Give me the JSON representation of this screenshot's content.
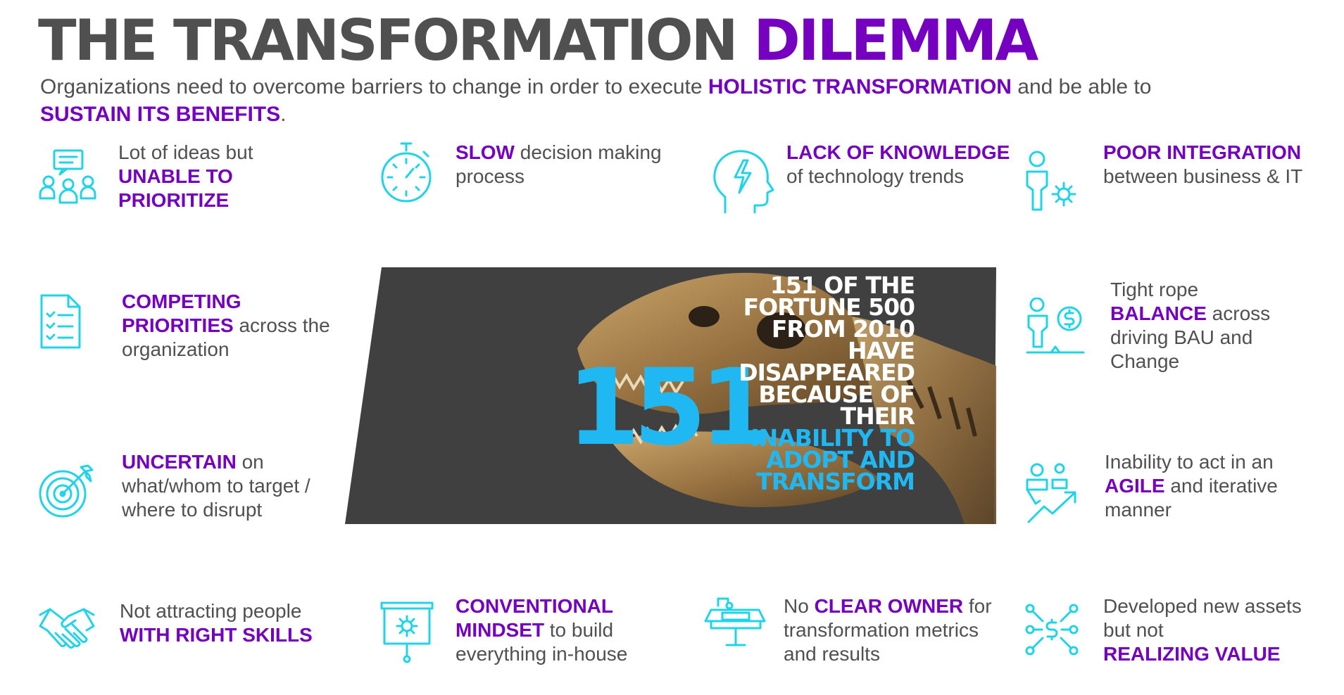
{
  "title": {
    "main": "THE TRANSFORMATION",
    "accent": "DILEMMA"
  },
  "subtitle": {
    "part1": "Organizations need to overcome barriers to change in order to execute ",
    "highlight1": "HOLISTIC TRANSFORMATION",
    "part2": " and be able to ",
    "highlight2": "SUSTAIN ITS BENEFITS",
    "part3": "."
  },
  "center": {
    "stat_lines": [
      "151 OF THE",
      "FORTUNE 500",
      "FROM 2010",
      "HAVE",
      "DISAPPEARED",
      "BECAUSE OF",
      "THEIR"
    ],
    "stat_highlight_lines": [
      "INABILITY TO",
      "ADOPT AND",
      "TRANSFORM"
    ],
    "big_number": "151"
  },
  "items": {
    "prioritize": {
      "icon": "chat-team-icon",
      "pre": "Lot of ideas but",
      "bold": "UNABLE TO PRIORITIZE",
      "post": ""
    },
    "slow": {
      "icon": "stopwatch-icon",
      "pre": "",
      "bold": "SLOW",
      "post": " decision making process"
    },
    "knowledge": {
      "icon": "brain-bolt-icon",
      "pre": "",
      "bold": "LACK OF KNOWLEDGE",
      "post": " of technology trends"
    },
    "integration": {
      "icon": "person-gear-icon",
      "pre": "",
      "bold": "POOR INTEGRATION",
      "post": "between business & IT"
    },
    "competing": {
      "icon": "checklist-icon",
      "pre": "",
      "bold": "COMPETING PRIORITIES",
      "post": " across the organization"
    },
    "balance": {
      "icon": "person-balance-icon",
      "pre": "Tight rope",
      "bold": "BALANCE",
      "post": " across driving BAU and Change"
    },
    "uncertain": {
      "icon": "target-icon",
      "pre": "",
      "bold": "UNCERTAIN",
      "post": " on what/whom to target / where to disrupt"
    },
    "agile": {
      "icon": "people-growth-icon",
      "pre": "Inability to act in an",
      "bold": "AGILE",
      "post": " and iterative manner"
    },
    "skills": {
      "icon": "handshake-icon",
      "pre": "Not attracting people",
      "bold": "WITH RIGHT SKILLS",
      "post": ""
    },
    "mindset": {
      "icon": "presentation-gear-icon",
      "pre": "",
      "bold": "CONVENTIONAL MINDSET",
      "post": " to build everything in-house"
    },
    "owner": {
      "icon": "desk-lamp-icon",
      "pre": "No ",
      "bold": "CLEAR OWNER",
      "post": " for transformation metrics and results"
    },
    "value": {
      "icon": "value-network-icon",
      "pre": "Developed new assets but not",
      "bold": "REALIZING VALUE",
      "post": ""
    }
  },
  "colors": {
    "accent": "#7500c0",
    "icon": "#1fd4e8",
    "stat_blue": "#1fb8f2",
    "panel": "#404040",
    "text": "#505050"
  }
}
